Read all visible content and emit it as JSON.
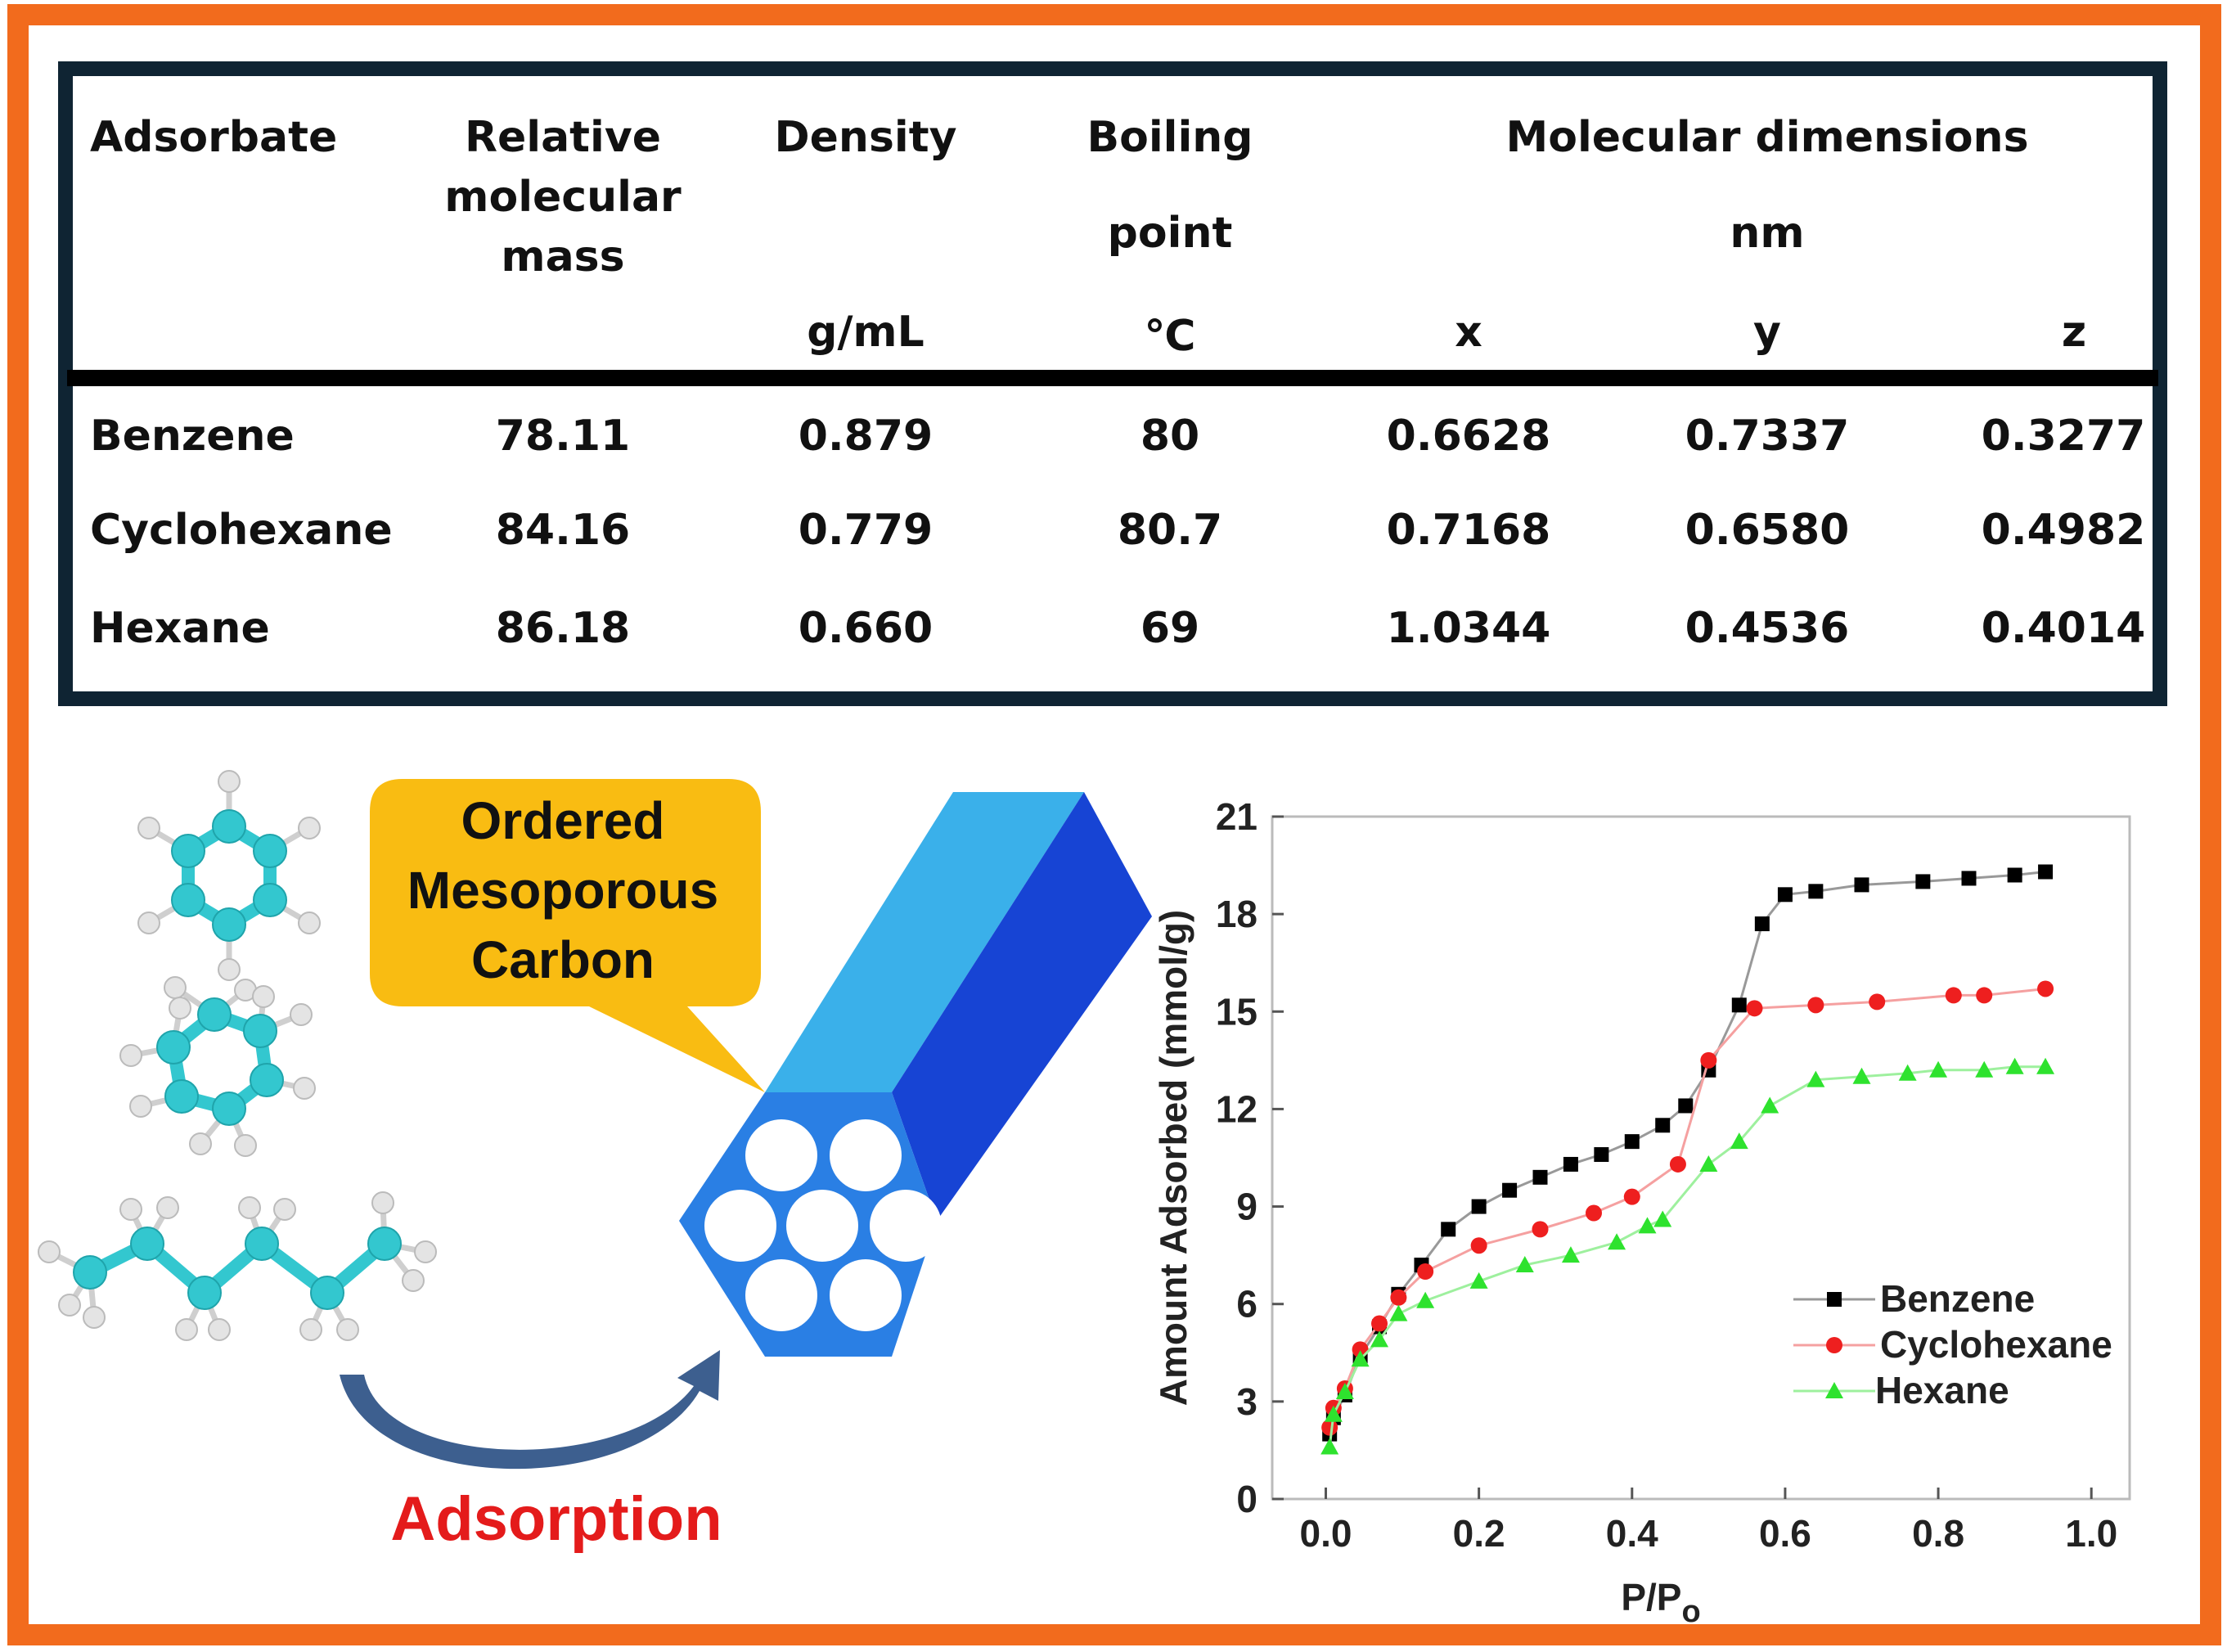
{
  "colors": {
    "frame": "#f26b1d",
    "table_border": "#0f2433",
    "callout": "#f9bc12",
    "adsorption_label": "#e41b1b",
    "arrow": "#3d5f8f",
    "tube_top": "#3ab0ea",
    "tube_side": "#1744d4",
    "tube_face": "#2a7fe4",
    "atom_c": "#33c7cf",
    "atom_h": "#e4e4e4",
    "benzene": "#000000",
    "cyclohexane": "#ee1f1f",
    "hexane": "#2ee22e"
  },
  "table": {
    "headers": {
      "adsorbate": "Adsorbate",
      "rmm": [
        "Relative",
        "molecular",
        "mass"
      ],
      "density": "Density",
      "density_unit": "g/mL",
      "boiling": "Boiling",
      "boiling2": "point",
      "boiling_unit": "℃",
      "mol_dim": "Molecular dimensions",
      "mol_dim_unit": "nm",
      "x": "x",
      "y": "y",
      "z": "z"
    },
    "rows": [
      {
        "name": "Benzene",
        "mass": "78.11",
        "density": "0.879",
        "bp": "80",
        "x": "0.6628",
        "y": "0.7337",
        "z": "0.3277"
      },
      {
        "name": "Cyclohexane",
        "mass": "84.16",
        "density": "0.779",
        "bp": "80.7",
        "x": "0.7168",
        "y": "0.6580",
        "z": "0.4982"
      },
      {
        "name": "Hexane",
        "mass": "86.18",
        "density": "0.660",
        "bp": "69",
        "x": "1.0344",
        "y": "0.4536",
        "z": "0.4014"
      }
    ]
  },
  "callout": {
    "lines": [
      "Ordered",
      "Mesoporous",
      "Carbon"
    ]
  },
  "adsorption_label": "Adsorption",
  "molecules": [
    {
      "name": "benzene",
      "icon": "benzene-molecule-icon"
    },
    {
      "name": "cyclohexane",
      "icon": "cyclohexane-molecule-icon"
    },
    {
      "name": "hexane",
      "icon": "hexane-molecule-icon"
    }
  ],
  "chart_data": {
    "type": "line",
    "title": "",
    "xlabel": "P/P",
    "xlabel_subscript": "o",
    "ylabel": "Amount Adsorbed (mmol/g)",
    "xlim": [
      -0.07,
      1.05
    ],
    "ylim": [
      0,
      21
    ],
    "xticks": [
      "0.0",
      "0.2",
      "0.4",
      "0.6",
      "0.8",
      "1.0"
    ],
    "xtick_values": [
      0,
      0.2,
      0.4,
      0.6,
      0.8,
      1.0
    ],
    "yticks": [
      "0",
      "3",
      "6",
      "9",
      "12",
      "15",
      "18",
      "21"
    ],
    "ytick_values": [
      0,
      3,
      6,
      9,
      12,
      15,
      18,
      21
    ],
    "legend_position": "bottom-right",
    "series": [
      {
        "name": "Benzene",
        "marker": "square",
        "x": [
          0.005,
          0.01,
          0.025,
          0.045,
          0.07,
          0.095,
          0.125,
          0.16,
          0.2,
          0.24,
          0.28,
          0.32,
          0.36,
          0.4,
          0.44,
          0.47,
          0.5,
          0.54,
          0.57,
          0.6,
          0.64,
          0.7,
          0.78,
          0.84,
          0.9,
          0.94
        ],
        "y": [
          2.0,
          2.5,
          3.2,
          4.4,
          5.3,
          6.3,
          7.2,
          8.3,
          9.0,
          9.5,
          9.9,
          10.3,
          10.6,
          11.0,
          11.5,
          12.1,
          13.2,
          15.2,
          17.7,
          18.6,
          18.7,
          18.9,
          19.0,
          19.1,
          19.2,
          19.3
        ]
      },
      {
        "name": "Cyclohexane",
        "marker": "circle",
        "x": [
          0.005,
          0.01,
          0.025,
          0.045,
          0.07,
          0.095,
          0.13,
          0.2,
          0.28,
          0.35,
          0.4,
          0.46,
          0.5,
          0.56,
          0.64,
          0.72,
          0.82,
          0.86,
          0.94
        ],
        "y": [
          2.2,
          2.8,
          3.4,
          4.6,
          5.4,
          6.2,
          7.0,
          7.8,
          8.3,
          8.8,
          9.3,
          10.3,
          13.5,
          15.1,
          15.2,
          15.3,
          15.5,
          15.5,
          15.7
        ],
        "line_color": "#f5a0a0"
      },
      {
        "name": "Hexane",
        "marker": "triangle",
        "x": [
          0.005,
          0.01,
          0.025,
          0.045,
          0.07,
          0.095,
          0.13,
          0.2,
          0.26,
          0.32,
          0.38,
          0.42,
          0.44,
          0.5,
          0.54,
          0.58,
          0.64,
          0.7,
          0.76,
          0.8,
          0.86,
          0.9,
          0.94
        ],
        "y": [
          1.6,
          2.6,
          3.3,
          4.3,
          4.9,
          5.7,
          6.1,
          6.7,
          7.2,
          7.5,
          7.9,
          8.4,
          8.6,
          10.3,
          11.0,
          12.1,
          12.9,
          13.0,
          13.1,
          13.2,
          13.2,
          13.3,
          13.3
        ],
        "line_color": "#9ef09e"
      }
    ]
  }
}
